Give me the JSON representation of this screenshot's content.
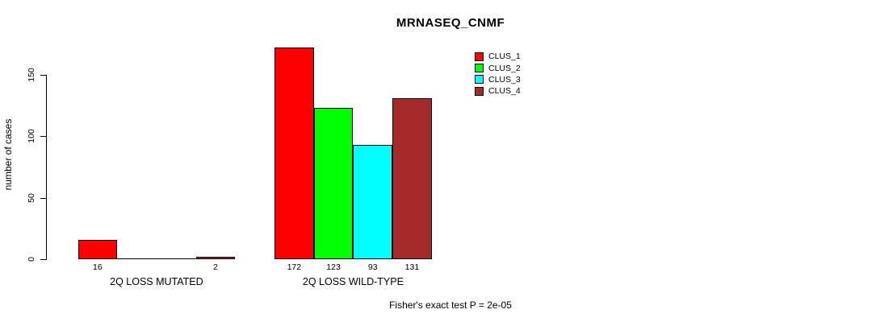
{
  "title": "MRNASEQ_CNMF",
  "ylabel": "number of cases",
  "footer": "Fisher's exact test P = 2e-05",
  "chart_data": {
    "type": "bar",
    "title": "MRNASEQ_CNMF",
    "xlabel": "",
    "ylabel": "number of cases",
    "categories": [
      "2Q LOSS MUTATED",
      "2Q LOSS WILD-TYPE"
    ],
    "series": [
      {
        "name": "CLUS_1",
        "color": "#ff0000",
        "values": [
          16,
          172
        ]
      },
      {
        "name": "CLUS_2",
        "color": "#00ff00",
        "values": [
          0,
          123
        ]
      },
      {
        "name": "CLUS_3",
        "color": "#00ffff",
        "values": [
          0,
          93
        ]
      },
      {
        "name": "CLUS_4",
        "color": "#a52a2a",
        "values": [
          2,
          131
        ]
      }
    ],
    "bar_value_labels": {
      "2Q LOSS MUTATED": [
        "16",
        "",
        "",
        "2"
      ],
      "2Q LOSS WILD-TYPE": [
        "172",
        "123",
        "93",
        "131"
      ]
    },
    "yticks": [
      0,
      50,
      100,
      150
    ],
    "ylim": [
      0,
      150
    ],
    "grid": false,
    "legend_position": "top-right",
    "legend_entries": [
      "CLUS_1",
      "CLUS_2",
      "CLUS_3",
      "CLUS_4"
    ],
    "annotation": "Fisher's exact test P = 2e-05"
  },
  "colors": {
    "clus_1": "#ff0000",
    "clus_2": "#00ff00",
    "clus_3": "#00ffff",
    "clus_4": "#a52a2a",
    "axis": "#000000",
    "background": "#ffffff"
  }
}
